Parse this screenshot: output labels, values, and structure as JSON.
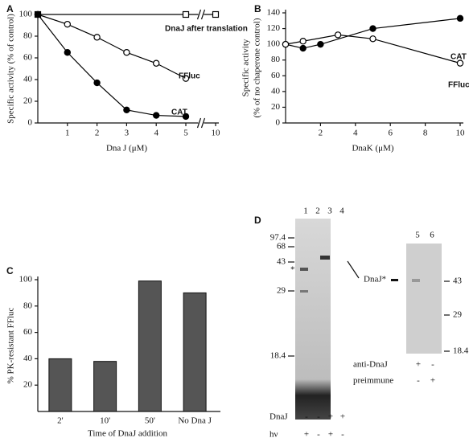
{
  "chart_data": [
    {
      "type": "line",
      "panel": "A",
      "y_label": "Specific activity (% of control)",
      "x_label": "Dna J (μM)",
      "xlim": [
        0,
        10
      ],
      "x_break": [
        5,
        10
      ],
      "xticks": [
        1,
        2,
        3,
        4,
        5,
        10
      ],
      "ylim": [
        0,
        100
      ],
      "yticks": [
        0,
        20,
        40,
        60,
        80,
        100
      ],
      "series": [
        {
          "name": "DnaJ after translation",
          "color": "#000000",
          "marker": "square",
          "x": [
            0,
            5,
            10
          ],
          "values": [
            100,
            100,
            100
          ]
        },
        {
          "name": "FFluc",
          "color": "#000000",
          "marker": "open",
          "x": [
            0,
            1,
            2,
            3,
            4,
            5
          ],
          "values": [
            100,
            91,
            79,
            65,
            55,
            41
          ]
        },
        {
          "name": "CAT",
          "color": "#000000",
          "marker": "filled",
          "x": [
            0,
            1,
            2,
            3,
            4,
            5
          ],
          "values": [
            100,
            65,
            37,
            12,
            7,
            6
          ]
        }
      ]
    },
    {
      "type": "line",
      "panel": "B",
      "y_label": "Specific activity",
      "y_label2": "(% of no chaperone control)",
      "x_label": "DnaK (μM)",
      "xlim": [
        0,
        10
      ],
      "xticks": [
        2,
        4,
        6,
        8,
        10
      ],
      "ylim": [
        0,
        140
      ],
      "yticks": [
        0,
        20,
        40,
        60,
        80,
        100,
        120,
        140
      ],
      "series": [
        {
          "name": "CAT",
          "color": "#000000",
          "marker": "filled",
          "x": [
            0,
            1,
            2,
            5,
            10
          ],
          "values": [
            100,
            95,
            100,
            120,
            133
          ]
        },
        {
          "name": "FFluc",
          "color": "#000000",
          "marker": "open",
          "x": [
            0,
            1,
            3,
            5,
            10
          ],
          "values": [
            100,
            104,
            112,
            107,
            76
          ]
        }
      ]
    },
    {
      "type": "bar",
      "panel": "C",
      "y_label": "% PK-resistant FFluc",
      "x_label": "Time of DnaJ addition",
      "categories": [
        "2'",
        "10'",
        "50'",
        "No Dna J"
      ],
      "values": [
        40,
        38,
        99,
        90
      ],
      "color": "#555555",
      "ylim": [
        0,
        100
      ],
      "yticks": [
        20,
        40,
        60,
        80,
        100
      ]
    }
  ],
  "gel": {
    "panel": "D",
    "lanes": [
      "1",
      "2",
      "3",
      "4"
    ],
    "lanes2": [
      "5",
      "6"
    ],
    "markers_left": [
      "97.4",
      "68",
      "43",
      "29",
      "18.4"
    ],
    "markers_right": [
      "43",
      "29",
      "18.4"
    ],
    "band_label": "DnaJ*",
    "star": "*",
    "rows": [
      {
        "label": "DnaJ",
        "signs": [
          "-",
          "-",
          "+",
          "+"
        ]
      },
      {
        "label": "hν",
        "signs": [
          "+",
          "-",
          "+",
          "-"
        ]
      }
    ],
    "rows2": [
      {
        "label": "anti-DnaJ",
        "signs": [
          "+",
          "-"
        ]
      },
      {
        "label": "preimmune",
        "signs": [
          "-",
          "+"
        ]
      }
    ]
  }
}
